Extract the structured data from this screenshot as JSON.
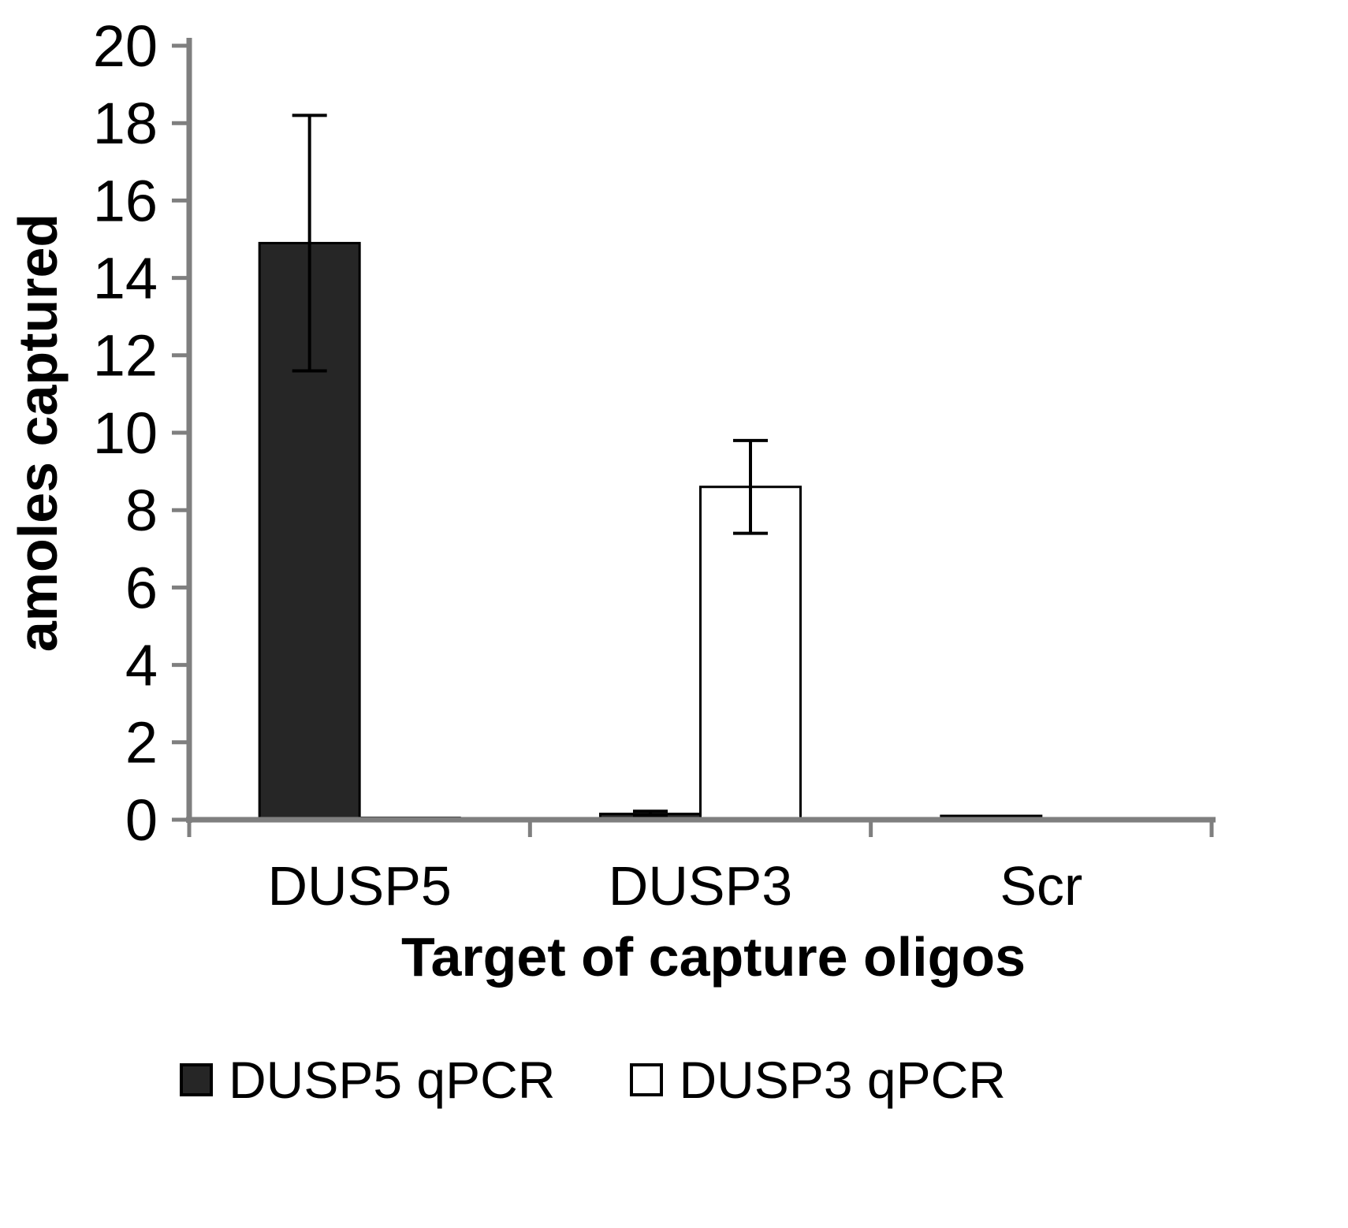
{
  "chart_data": {
    "type": "bar",
    "title": "",
    "xlabel": "Target of capture oligos",
    "ylabel": "amoles captured",
    "categories": [
      "DUSP5",
      "DUSP3",
      "Scr"
    ],
    "series": [
      {
        "name": "DUSP5 qPCR",
        "color": "#262626",
        "values": [
          14.9,
          0.15,
          0.1
        ],
        "errors": [
          3.3,
          0.07,
          0
        ]
      },
      {
        "name": "DUSP3 qPCR",
        "color": "#ffffff",
        "values": [
          0.05,
          8.6,
          0.02
        ],
        "errors": [
          0,
          1.2,
          0
        ]
      }
    ],
    "ylim": [
      0,
      20
    ],
    "ytick_step": 2,
    "yticks": [
      0,
      2,
      4,
      6,
      8,
      10,
      12,
      14,
      16,
      18,
      20
    ],
    "grid": false,
    "legend_position": "bottom",
    "axis_color": "#7f7f7f",
    "bar_outline": "#000000"
  }
}
